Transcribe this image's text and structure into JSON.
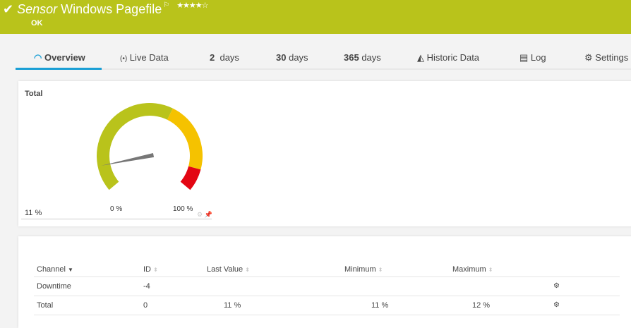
{
  "header": {
    "sensor_word": "Sensor",
    "name": "Windows Pagefile",
    "status": "OK",
    "priority_stars": "★★★★☆",
    "priority": 4,
    "icons": [
      "check-icon",
      "flag-icon"
    ],
    "color": "#b9c31b"
  },
  "tabs": [
    {
      "label": "Overview",
      "icon": "gauge-icon",
      "active": true
    },
    {
      "label": "Live Data",
      "icon": "broadcast-icon"
    },
    {
      "num": "2",
      "label": "days"
    },
    {
      "num": "30",
      "label": "days"
    },
    {
      "num": "365",
      "label": "days"
    },
    {
      "label": "Historic Data",
      "icon": "area-chart-icon"
    },
    {
      "label": "Log",
      "icon": "list-icon"
    },
    {
      "label": "Settings",
      "icon": "gear-icon"
    }
  ],
  "gauge": {
    "title": "Total",
    "value_label": "11 %",
    "value": 11,
    "min_label": "0 %",
    "max_label": "100 %",
    "zones": {
      "green": "#b9c31b",
      "yellow": "#f5c200",
      "red": "#e30613"
    }
  },
  "table": {
    "headers": [
      "Channel",
      "ID",
      "Last Value",
      "Minimum",
      "Maximum"
    ],
    "rows": [
      {
        "channel": "Downtime",
        "id": "-4",
        "last": "",
        "min": "",
        "max": ""
      },
      {
        "channel": "Total",
        "id": "0",
        "last": "11 %",
        "min": "11 %",
        "max": "12 %"
      }
    ]
  }
}
